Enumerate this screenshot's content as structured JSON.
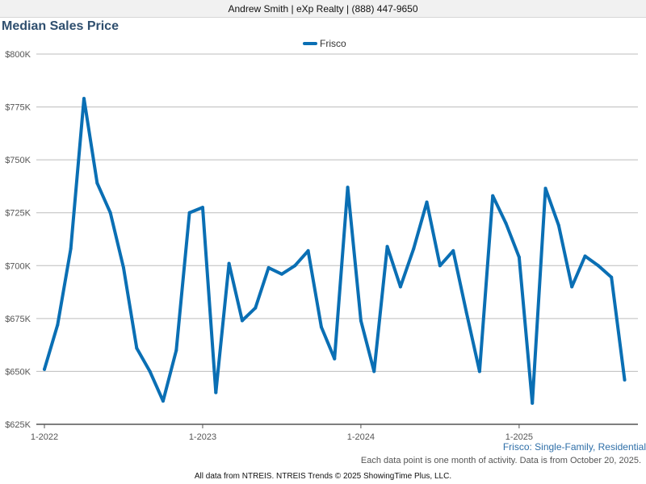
{
  "header": {
    "banner": "Andrew Smith | eXp Realty | (888) 447-9650"
  },
  "chart_data": {
    "type": "line",
    "title": "Median Sales Price",
    "xlabel": "",
    "ylabel": "",
    "grid": true,
    "legend_position": "top-center",
    "y_ticks": [
      625000,
      650000,
      675000,
      700000,
      725000,
      750000,
      775000,
      800000
    ],
    "y_tick_labels": [
      "$625K",
      "$650K",
      "$675K",
      "$700K",
      "$725K",
      "$750K",
      "$775K",
      "$800K"
    ],
    "ylim": [
      625000,
      800000
    ],
    "x_ticks": [
      "2022-01",
      "2023-01",
      "2024-01",
      "2025-01"
    ],
    "x_tick_labels": [
      "1-2022",
      "1-2023",
      "1-2024",
      "1-2025"
    ],
    "x": [
      "2022-01",
      "2022-02",
      "2022-03",
      "2022-04",
      "2022-05",
      "2022-06",
      "2022-07",
      "2022-08",
      "2022-09",
      "2022-10",
      "2022-11",
      "2022-12",
      "2023-01",
      "2023-02",
      "2023-03",
      "2023-04",
      "2023-05",
      "2023-06",
      "2023-07",
      "2023-08",
      "2023-09",
      "2023-10",
      "2023-11",
      "2023-12",
      "2024-01",
      "2024-02",
      "2024-03",
      "2024-04",
      "2024-05",
      "2024-06",
      "2024-07",
      "2024-08",
      "2024-09",
      "2024-10",
      "2024-11",
      "2024-12",
      "2025-01",
      "2025-02",
      "2025-03",
      "2025-04",
      "2025-05",
      "2025-06",
      "2025-07",
      "2025-08",
      "2025-09"
    ],
    "series": [
      {
        "name": "Frisco",
        "color": "#0a6fb4",
        "values": [
          651000,
          672000,
          708000,
          779000,
          739000,
          725000,
          699000,
          661000,
          650000,
          636000,
          660000,
          725000,
          727500,
          640000,
          701000,
          674000,
          680000,
          699000,
          696000,
          700000,
          707000,
          671000,
          656000,
          737000,
          674000,
          650000,
          709000,
          690000,
          708000,
          730000,
          700000,
          707000,
          678000,
          650000,
          733000,
          720000,
          704000,
          635000,
          736500,
          719000,
          690000,
          704500,
          700000,
          694500,
          646000
        ]
      }
    ]
  },
  "footer": {
    "caption": "Frisco: Single-Family, Residential",
    "note": "Each data point is one month of activity. Data is from October 20, 2025.",
    "source": "All data from NTREIS. NTREIS Trends © 2025 ShowingTime Plus, LLC."
  }
}
